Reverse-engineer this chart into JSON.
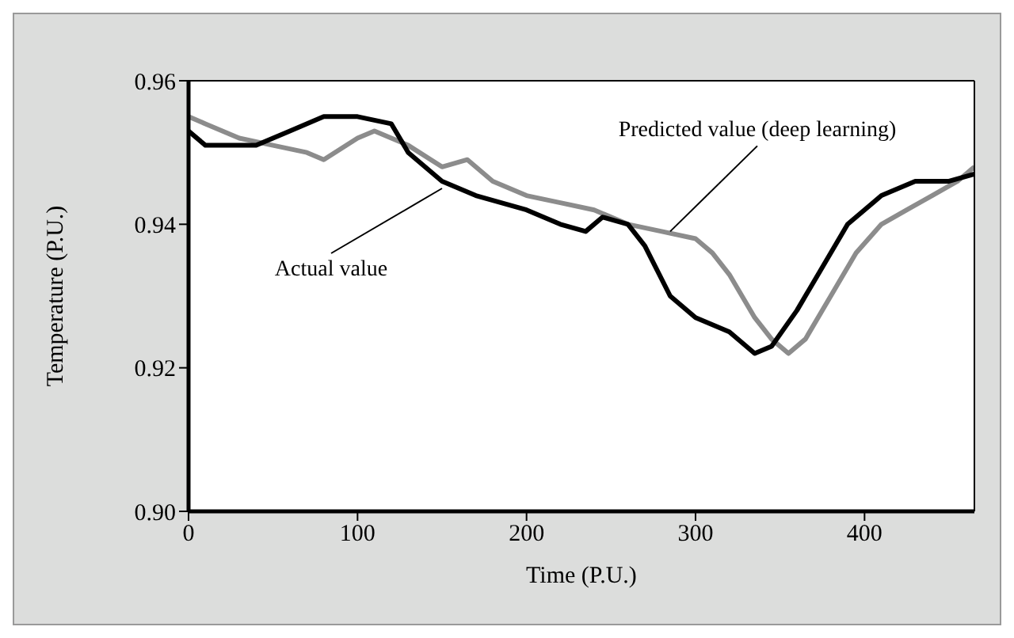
{
  "chart_data": {
    "type": "line",
    "xlabel": "Time (P.U.)",
    "ylabel": "Temperature (P.U.)",
    "xlim": [
      0,
      465
    ],
    "xticks": [
      0,
      100,
      200,
      300,
      400
    ],
    "ylim": [
      0.9,
      0.96
    ],
    "yticks": [
      {
        "value": 0.9,
        "label": "0.90"
      },
      {
        "value": 0.92,
        "label": "0.92"
      },
      {
        "value": 0.94,
        "label": "0.94"
      },
      {
        "value": 0.96,
        "label": "0.96"
      }
    ],
    "marker": "none",
    "line_style": "solid",
    "series": [
      {
        "color": "#8c8c8c",
        "x": [
          0,
          10,
          30,
          50,
          70,
          80,
          100,
          110,
          130,
          150,
          165,
          180,
          200,
          220,
          240,
          260,
          280,
          300,
          310,
          320,
          335,
          345,
          355,
          365,
          380,
          395,
          410,
          425,
          440,
          455,
          465
        ],
        "values": [
          0.955,
          0.954,
          0.952,
          0.951,
          0.95,
          0.949,
          0.952,
          0.953,
          0.951,
          0.948,
          0.949,
          0.946,
          0.944,
          0.943,
          0.942,
          0.94,
          0.939,
          0.938,
          0.936,
          0.933,
          0.927,
          0.924,
          0.922,
          0.924,
          0.93,
          0.936,
          0.94,
          0.942,
          0.944,
          0.946,
          0.948
        ]
      },
      {
        "color": "#000000",
        "x": [
          0,
          10,
          30,
          40,
          60,
          80,
          100,
          120,
          130,
          150,
          170,
          200,
          220,
          235,
          245,
          260,
          270,
          285,
          300,
          320,
          335,
          345,
          360,
          375,
          390,
          410,
          430,
          450,
          465
        ],
        "values": [
          0.953,
          0.951,
          0.951,
          0.951,
          0.953,
          0.955,
          0.955,
          0.954,
          0.95,
          0.946,
          0.944,
          0.942,
          0.94,
          0.939,
          0.941,
          0.94,
          0.937,
          0.93,
          0.927,
          0.925,
          0.922,
          0.923,
          0.928,
          0.934,
          0.94,
          0.944,
          0.946,
          0.946,
          0.947
        ]
      }
    ],
    "annotations": [
      {
        "text": "Actual value",
        "x": 150,
        "y": 0.945
      },
      {
        "text": "Predicted value (deep learning)",
        "x": 285,
        "y": 0.939
      }
    ]
  }
}
